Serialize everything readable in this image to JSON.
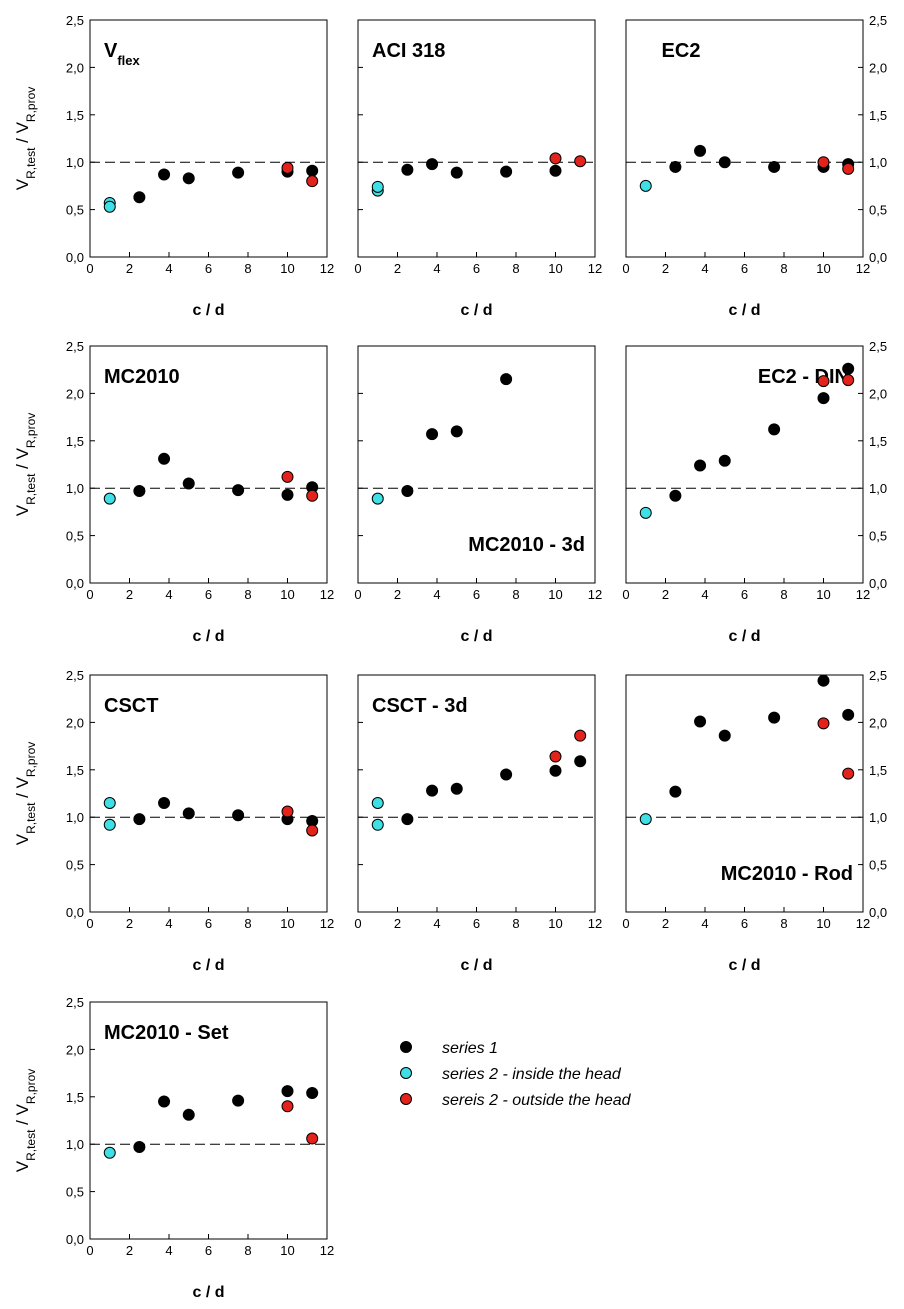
{
  "legend": [
    {
      "name": "series 1",
      "color": "#000000"
    },
    {
      "name": "series 2 - inside the head",
      "color": "#3fdfe6"
    },
    {
      "name": "sereis 2 - outside the head",
      "color": "#e3231b"
    }
  ],
  "chart_data": [
    {
      "type": "scatter",
      "title": "V",
      "title_sub": "flex",
      "title_pos": "top-left",
      "yaxis": "left",
      "ylabel": [
        {
          "text": "V"
        },
        {
          "text": "R,test",
          "sub": true
        },
        {
          "text": " / V"
        },
        {
          "text": "R,prov",
          "sub": true
        }
      ],
      "xlabel": "c / d",
      "xlim": [
        0,
        12
      ],
      "ylim": [
        0,
        2.5
      ],
      "refline": 1,
      "xticks": [
        0,
        2,
        4,
        6,
        8,
        10,
        12
      ],
      "yticks": [
        {
          "value": 0,
          "label": "0,0"
        },
        {
          "value": 0.5,
          "label": "0,5"
        },
        {
          "value": 1,
          "label": "1,0"
        },
        {
          "value": 1.5,
          "label": "1,5"
        },
        {
          "value": 2,
          "label": "2,0"
        },
        {
          "value": 2.5,
          "label": "2,5"
        }
      ],
      "series": [
        {
          "x": [
            2.5,
            3.75,
            5,
            7.5,
            10,
            11.25
          ],
          "values": [
            0.63,
            0.87,
            0.83,
            0.89,
            0.9,
            0.91
          ]
        },
        {
          "x": [
            1,
            1
          ],
          "values": [
            0.57,
            0.53
          ]
        },
        {
          "x": [
            10,
            11.25
          ],
          "values": [
            0.94,
            0.8
          ]
        }
      ]
    },
    {
      "type": "scatter",
      "title": "ACI 318",
      "title_pos": "top-left",
      "yaxis": "none",
      "xlabel": "c / d",
      "xlim": [
        0,
        12
      ],
      "ylim": [
        0,
        2.5
      ],
      "refline": 1,
      "xticks": [
        0,
        2,
        4,
        6,
        8,
        10,
        12
      ],
      "yticks": [
        0,
        0.5,
        1,
        1.5,
        2,
        2.5
      ],
      "series": [
        {
          "x": [
            2.5,
            3.75,
            5,
            7.5,
            10
          ],
          "values": [
            0.92,
            0.98,
            0.89,
            0.9,
            0.91
          ]
        },
        {
          "x": [
            1,
            1
          ],
          "values": [
            0.7,
            0.74
          ]
        },
        {
          "x": [
            10,
            11.25
          ],
          "values": [
            1.04,
            1.01
          ]
        }
      ]
    },
    {
      "type": "scatter",
      "title": "EC2",
      "title_pos": "top-center",
      "yaxis": "right",
      "xlabel": "c / d",
      "xlim": [
        0,
        12
      ],
      "ylim": [
        0,
        2.5
      ],
      "refline": 1,
      "xticks": [
        0,
        2,
        4,
        6,
        8,
        10,
        12
      ],
      "yticks": [
        {
          "value": 0,
          "label": "0,0"
        },
        {
          "value": 0.5,
          "label": "0,5"
        },
        {
          "value": 1,
          "label": "1,0"
        },
        {
          "value": 1.5,
          "label": "1,5"
        },
        {
          "value": 2,
          "label": "2,0"
        },
        {
          "value": 2.5,
          "label": "2,5"
        }
      ],
      "series": [
        {
          "x": [
            2.5,
            3.75,
            5,
            7.5,
            10,
            11.25
          ],
          "values": [
            0.95,
            1.12,
            1.0,
            0.95,
            0.95,
            0.98
          ]
        },
        {
          "x": [
            1
          ],
          "values": [
            0.75
          ]
        },
        {
          "x": [
            10,
            11.25
          ],
          "values": [
            1.0,
            0.93
          ]
        }
      ]
    },
    {
      "type": "scatter",
      "title": "MC2010",
      "title_pos": "top-left",
      "yaxis": "left",
      "ylabel": [
        {
          "text": "V"
        },
        {
          "text": "R,test",
          "sub": true
        },
        {
          "text": " / V"
        },
        {
          "text": "R,prov",
          "sub": true
        }
      ],
      "xlabel": "c / d",
      "xlim": [
        0,
        12
      ],
      "ylim": [
        0,
        2.5
      ],
      "refline": 1,
      "xticks": [
        0,
        2,
        4,
        6,
        8,
        10,
        12
      ],
      "yticks": [
        {
          "value": 0,
          "label": "0,0"
        },
        {
          "value": 0.5,
          "label": "0,5"
        },
        {
          "value": 1,
          "label": "1,0"
        },
        {
          "value": 1.5,
          "label": "1,5"
        },
        {
          "value": 2,
          "label": "2,0"
        },
        {
          "value": 2.5,
          "label": "2,5"
        }
      ],
      "series": [
        {
          "x": [
            2.5,
            3.75,
            5,
            7.5,
            10,
            11.25
          ],
          "values": [
            0.97,
            1.31,
            1.05,
            0.98,
            0.93,
            1.01
          ]
        },
        {
          "x": [
            1
          ],
          "values": [
            0.89
          ]
        },
        {
          "x": [
            10,
            11.25
          ],
          "values": [
            1.12,
            0.92
          ]
        }
      ]
    },
    {
      "type": "scatter",
      "title": "MC2010 - 3d",
      "title_pos": "bottom-right",
      "yaxis": "none",
      "xlabel": "c / d",
      "xlim": [
        0,
        12
      ],
      "ylim": [
        0,
        2.5
      ],
      "refline": 1,
      "xticks": [
        0,
        2,
        4,
        6,
        8,
        10,
        12
      ],
      "yticks": [
        0,
        0.5,
        1,
        1.5,
        2,
        2.5
      ],
      "series": [
        {
          "x": [
            2.5,
            3.75,
            5,
            7.5
          ],
          "values": [
            0.97,
            1.57,
            1.6,
            2.15
          ]
        },
        {
          "x": [
            1
          ],
          "values": [
            0.89
          ]
        },
        {
          "x": [],
          "values": []
        }
      ]
    },
    {
      "type": "scatter",
      "title": "EC2 - DIN",
      "title_pos": "top-right",
      "yaxis": "right",
      "xlabel": "c / d",
      "xlim": [
        0,
        12
      ],
      "ylim": [
        0,
        2.5
      ],
      "refline": 1,
      "xticks": [
        0,
        2,
        4,
        6,
        8,
        10,
        12
      ],
      "yticks": [
        {
          "value": 0,
          "label": "0,0"
        },
        {
          "value": 0.5,
          "label": "0,5"
        },
        {
          "value": 1,
          "label": "1,0"
        },
        {
          "value": 1.5,
          "label": "1,5"
        },
        {
          "value": 2,
          "label": "2,0"
        },
        {
          "value": 2.5,
          "label": "2,5"
        }
      ],
      "series": [
        {
          "x": [
            2.5,
            3.75,
            5,
            7.5,
            10,
            11.25
          ],
          "values": [
            0.92,
            1.24,
            1.29,
            1.62,
            1.95,
            2.26
          ]
        },
        {
          "x": [
            1
          ],
          "values": [
            0.74
          ]
        },
        {
          "x": [
            10,
            11.25
          ],
          "values": [
            2.13,
            2.14
          ]
        }
      ]
    },
    {
      "type": "scatter",
      "title": "CSCT",
      "title_pos": "top-left",
      "yaxis": "left",
      "ylabel": [
        {
          "text": "V"
        },
        {
          "text": "R,test",
          "sub": true
        },
        {
          "text": " / V"
        },
        {
          "text": "R,prov",
          "sub": true
        }
      ],
      "xlabel": "c / d",
      "xlim": [
        0,
        12
      ],
      "ylim": [
        0,
        2.5
      ],
      "refline": 1,
      "xticks": [
        0,
        2,
        4,
        6,
        8,
        10,
        12
      ],
      "yticks": [
        {
          "value": 0,
          "label": "0,0"
        },
        {
          "value": 0.5,
          "label": "0,5"
        },
        {
          "value": 1,
          "label": "1,0"
        },
        {
          "value": 1.5,
          "label": "1,5"
        },
        {
          "value": 2,
          "label": "2,0"
        },
        {
          "value": 2.5,
          "label": "2,5"
        }
      ],
      "series": [
        {
          "x": [
            2.5,
            3.75,
            5,
            7.5,
            10,
            11.25
          ],
          "values": [
            0.98,
            1.15,
            1.04,
            1.02,
            0.98,
            0.96
          ]
        },
        {
          "x": [
            1,
            1
          ],
          "values": [
            1.15,
            0.92
          ]
        },
        {
          "x": [
            10,
            11.25
          ],
          "values": [
            1.06,
            0.86
          ]
        }
      ]
    },
    {
      "type": "scatter",
      "title": "CSCT - 3d",
      "title_pos": "top-left",
      "yaxis": "none",
      "xlabel": "c / d",
      "xlim": [
        0,
        12
      ],
      "ylim": [
        0,
        2.5
      ],
      "refline": 1,
      "xticks": [
        0,
        2,
        4,
        6,
        8,
        10,
        12
      ],
      "yticks": [
        0,
        0.5,
        1,
        1.5,
        2,
        2.5
      ],
      "series": [
        {
          "x": [
            2.5,
            3.75,
            5,
            7.5,
            10,
            11.25
          ],
          "values": [
            0.98,
            1.28,
            1.3,
            1.45,
            1.49,
            1.59
          ]
        },
        {
          "x": [
            1,
            1
          ],
          "values": [
            1.15,
            0.92
          ]
        },
        {
          "x": [
            10,
            11.25
          ],
          "values": [
            1.64,
            1.86
          ]
        }
      ]
    },
    {
      "type": "scatter",
      "title": "MC2010 - Rod",
      "title_pos": "bottom-right",
      "yaxis": "right",
      "xlabel": "c / d",
      "xlim": [
        0,
        12
      ],
      "ylim": [
        0,
        2.5
      ],
      "refline": 1,
      "xticks": [
        0,
        2,
        4,
        6,
        8,
        10,
        12
      ],
      "yticks": [
        {
          "value": 0,
          "label": "0,0"
        },
        {
          "value": 0.5,
          "label": "0,5"
        },
        {
          "value": 1,
          "label": "1,0"
        },
        {
          "value": 1.5,
          "label": "1,5"
        },
        {
          "value": 2,
          "label": "2,0"
        },
        {
          "value": 2.5,
          "label": "2,5"
        }
      ],
      "series": [
        {
          "x": [
            2.5,
            3.75,
            5,
            7.5,
            10,
            11.25
          ],
          "values": [
            1.27,
            2.01,
            1.86,
            2.05,
            2.44,
            2.08
          ]
        },
        {
          "x": [
            1
          ],
          "values": [
            0.98
          ]
        },
        {
          "x": [
            10,
            11.25
          ],
          "values": [
            1.99,
            1.46
          ]
        }
      ]
    },
    {
      "type": "scatter",
      "title": "MC2010 - Set",
      "title_pos": "top-left",
      "yaxis": "left",
      "ylabel": [
        {
          "text": "V"
        },
        {
          "text": "R,test",
          "sub": true
        },
        {
          "text": " / V"
        },
        {
          "text": "R,prov",
          "sub": true
        }
      ],
      "xlabel": "c / d",
      "xlim": [
        0,
        12
      ],
      "ylim": [
        0,
        2.5
      ],
      "refline": 1,
      "xticks": [
        0,
        2,
        4,
        6,
        8,
        10,
        12
      ],
      "yticks": [
        {
          "value": 0,
          "label": "0,0"
        },
        {
          "value": 0.5,
          "label": "0,5"
        },
        {
          "value": 1,
          "label": "1,0"
        },
        {
          "value": 1.5,
          "label": "1,5"
        },
        {
          "value": 2,
          "label": "2,0"
        },
        {
          "value": 2.5,
          "label": "2,5"
        }
      ],
      "series": [
        {
          "x": [
            2.5,
            3.75,
            5,
            7.5,
            10,
            11.25
          ],
          "values": [
            0.97,
            1.45,
            1.31,
            1.46,
            1.56,
            1.54
          ]
        },
        {
          "x": [
            1
          ],
          "values": [
            0.91
          ]
        },
        {
          "x": [
            10,
            11.25
          ],
          "values": [
            1.4,
            1.06
          ]
        }
      ]
    }
  ]
}
